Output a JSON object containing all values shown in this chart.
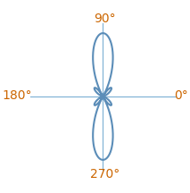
{
  "bg_color": "#ffffff",
  "axis_color": "#7bafd4",
  "pattern_color": "#5b8db8",
  "pattern_linewidth": 1.5,
  "label_color": "#cc6600",
  "label_fontsize": 10,
  "fig_width": 2.13,
  "fig_height": 2.16,
  "dpi": 100,
  "lim": 1.3,
  "axis_extent": 1.15
}
